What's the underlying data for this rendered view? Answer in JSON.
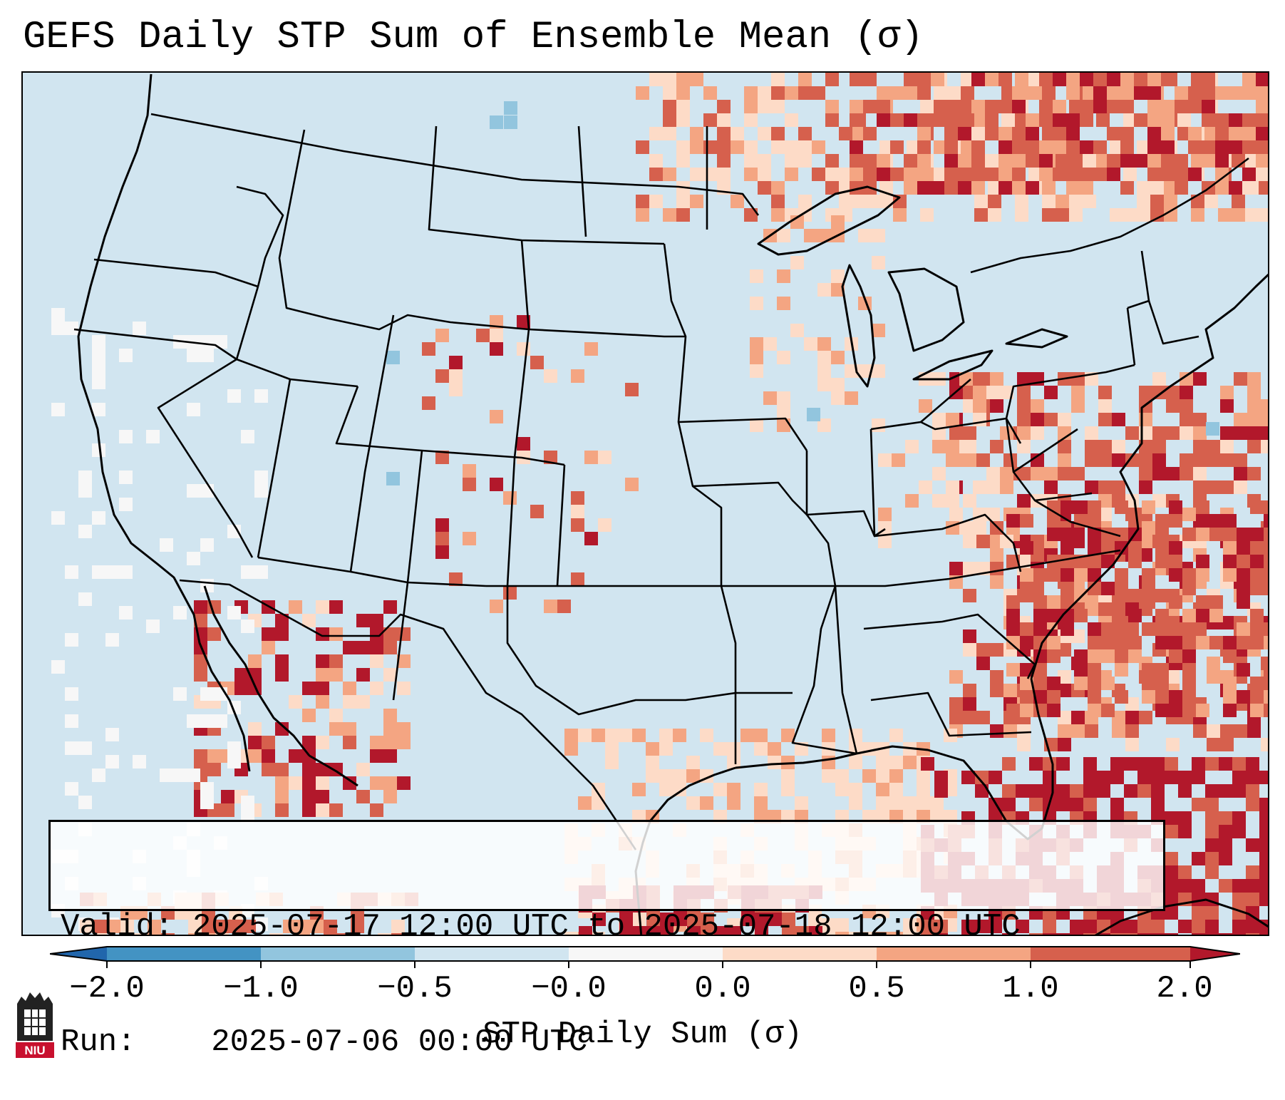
{
  "title": "GEFS Daily STP Sum of Ensemble Mean (σ)",
  "info": {
    "valid_label": "Valid:",
    "valid_value": "2025-07-17 12:00 UTC to 2025-07-18 12:00 UTC",
    "run_label": "Run:",
    "run_value": "2025-07-06 00:00 UTC"
  },
  "colorbar": {
    "label": "STP Daily Sum (σ)",
    "ticks": [
      "−2.0",
      "−1.0",
      "−0.5",
      "−0.0",
      "0.0",
      "0.5",
      "1.0",
      "2.0"
    ],
    "bins": [
      {
        "range": "< -2.0",
        "color": "#2166ac"
      },
      {
        "range": "-2.0 to -1.0",
        "color": "#4393c3"
      },
      {
        "range": "-1.0 to -0.5",
        "color": "#92c5de"
      },
      {
        "range": "-0.5 to -0.0",
        "color": "#d1e5f0"
      },
      {
        "range": "-0.0 to 0.0",
        "color": "#f7f7f7"
      },
      {
        "range": "0.0 to 0.5",
        "color": "#fddbc7"
      },
      {
        "range": "0.5 to 1.0",
        "color": "#f4a582"
      },
      {
        "range": "1.0 to 2.0",
        "color": "#d6604d"
      },
      {
        "range": "> 2.0",
        "color": "#b2182b"
      }
    ]
  },
  "map": {
    "region": "Contiguous United States",
    "anomaly_areas": [
      {
        "region": "Southern Canada / Upper Great Lakes",
        "category": "0.0 to 0.5",
        "color": "#fddbc7"
      },
      {
        "region": "Quebec / Ontario",
        "category": "1.0 to 2.0",
        "color": "#d6604d"
      },
      {
        "region": "Western Atlantic offshore",
        "category": "1.0 to 2.0",
        "color": "#d6604d"
      },
      {
        "region": "Sonora / Sierra Madre",
        "category": "> 2.0",
        "color": "#b2182b"
      },
      {
        "region": "Gulf of Mexico",
        "category": "0.0 to 0.5",
        "color": "#fddbc7"
      },
      {
        "region": "Cuba / Bahamas",
        "category": "> 2.0",
        "color": "#b2182b"
      },
      {
        "region": "Eastern Pacific offshore",
        "category": "-0.0 to 0.0",
        "color": "#f7f7f7"
      }
    ]
  },
  "logo": {
    "text": "NIU"
  }
}
